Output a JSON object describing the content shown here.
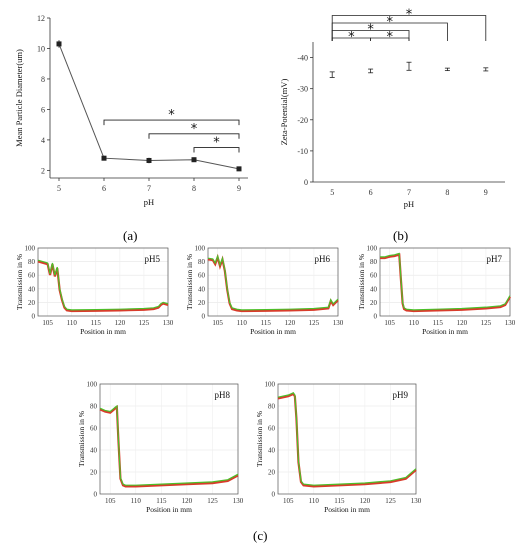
{
  "chart_data": [
    {
      "id": "a",
      "type": "line",
      "panel_label": "(a)",
      "xlabel": "pH",
      "ylabel": "Mean Particle Diameter(um)",
      "xlim": [
        4.8,
        9.2
      ],
      "ylim": [
        1.5,
        12
      ],
      "xticks": [
        5,
        6,
        7,
        8,
        9
      ],
      "yticks": [
        2,
        4,
        6,
        8,
        10,
        12
      ],
      "x": [
        5,
        6,
        7,
        8,
        9
      ],
      "y": [
        10.3,
        2.8,
        2.65,
        2.7,
        2.1
      ],
      "err": [
        0.25,
        0.15,
        0.18,
        0.15,
        0.12
      ],
      "color": "#555555",
      "significance": [
        {
          "from": 6,
          "to": 9,
          "y": 5.3,
          "label": "*"
        },
        {
          "from": 7,
          "to": 9,
          "y": 4.4,
          "label": "*"
        },
        {
          "from": 8,
          "to": 9,
          "y": 3.5,
          "label": "*"
        }
      ]
    },
    {
      "id": "b",
      "type": "bar",
      "panel_label": "(b)",
      "xlabel": "pH",
      "ylabel": "Zeta-Potential(mV)",
      "ylim": [
        -45,
        0
      ],
      "yticks": [
        0,
        -10,
        -20,
        -30,
        -40
      ],
      "categories": [
        "5",
        "6",
        "7",
        "8",
        "9"
      ],
      "values": [
        -34.5,
        -35.7,
        -37.2,
        -36.2,
        -36.2
      ],
      "err": [
        0.9,
        0.6,
        1.3,
        0.4,
        0.5
      ],
      "bar_color": "#7a7a7a",
      "significance": [
        {
          "from": "5",
          "to": "6",
          "level": 1,
          "label": "*"
        },
        {
          "from": "6",
          "to": "7",
          "level": 1,
          "label": "*"
        },
        {
          "from": "5",
          "to": "7",
          "level": 2,
          "label": "*"
        },
        {
          "from": "5",
          "to": "8",
          "level": 3,
          "label": "*"
        },
        {
          "from": "5",
          "to": "9",
          "level": 4,
          "label": "*"
        }
      ]
    },
    {
      "id": "c",
      "type": "line",
      "panel_label": "(c)",
      "xlabel": "Position in mm",
      "ylabel": "Transmission in %",
      "xlim": [
        103,
        130
      ],
      "ylim": [
        0,
        100
      ],
      "xticks": [
        105,
        110,
        115,
        120,
        125,
        130
      ],
      "yticks": [
        0,
        20,
        40,
        60,
        80,
        100
      ],
      "grid": true,
      "series_colors": [
        "#d93b2b",
        "#4cbf2a"
      ],
      "subplots": [
        {
          "label": "pH5",
          "x": [
            103,
            104,
            105,
            105.5,
            106,
            106.5,
            107,
            107.5,
            108,
            108.5,
            109,
            110,
            115,
            120,
            125,
            127,
            128,
            128.5,
            129,
            130
          ],
          "y": [
            82,
            80,
            78,
            62,
            78,
            60,
            72,
            40,
            25,
            14,
            10,
            9,
            9.5,
            10,
            11,
            12,
            14,
            18,
            20,
            18
          ]
        },
        {
          "label": "pH6",
          "x": [
            103,
            104,
            104.5,
            105,
            105.5,
            106,
            106.5,
            107,
            107.5,
            108,
            109,
            110,
            115,
            120,
            125,
            128,
            128.5,
            129,
            130
          ],
          "y": [
            85,
            84,
            78,
            88,
            75,
            85,
            68,
            40,
            20,
            12,
            10,
            9,
            9.5,
            10,
            11,
            13,
            24,
            18,
            25
          ]
        },
        {
          "label": "pH7",
          "x": [
            103,
            104,
            105,
            106,
            106.5,
            107,
            107.3,
            107.7,
            108,
            108.5,
            110,
            115,
            120,
            125,
            128,
            129,
            130
          ],
          "y": [
            87,
            87,
            89,
            90,
            91,
            92,
            60,
            20,
            12,
            10,
            9,
            10,
            11,
            13,
            15,
            18,
            30
          ]
        },
        {
          "label": "pH8",
          "x": [
            103,
            104,
            105,
            105.5,
            106,
            106.3,
            106.6,
            107,
            107.5,
            108,
            110,
            115,
            120,
            125,
            128,
            130
          ],
          "y": [
            78,
            76,
            75,
            77,
            79,
            80,
            50,
            15,
            9,
            8,
            8,
            9,
            10,
            11,
            13,
            18
          ]
        },
        {
          "label": "pH9",
          "x": [
            103,
            104,
            105,
            105.5,
            106,
            106.3,
            106.6,
            107,
            107.5,
            108,
            110,
            115,
            120,
            125,
            128,
            130
          ],
          "y": [
            88,
            89,
            90,
            91,
            92,
            90,
            70,
            30,
            12,
            9,
            8,
            9,
            10,
            12,
            15,
            23
          ]
        }
      ]
    }
  ]
}
